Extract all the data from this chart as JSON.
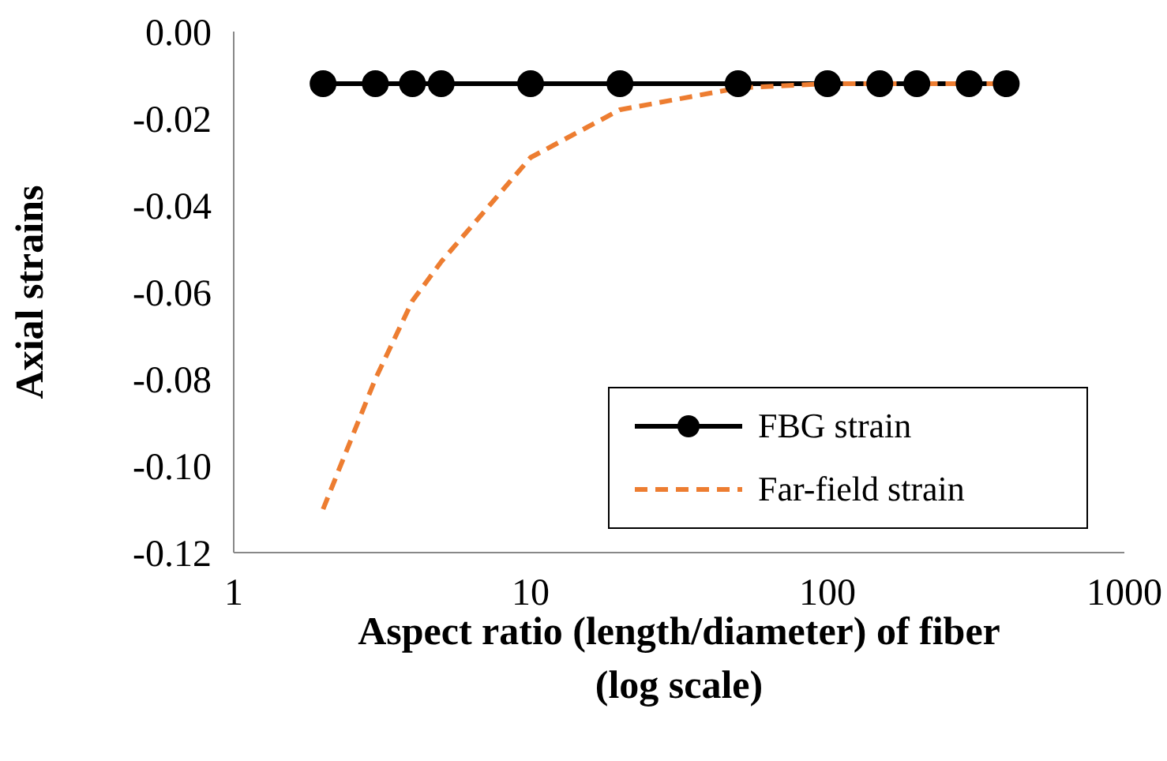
{
  "chart_data": {
    "type": "line",
    "xlabel": "Aspect ratio (length/diameter) of fiber\n(log scale)",
    "ylabel": "Axial strains",
    "x": [
      2,
      3,
      4,
      5,
      10,
      20,
      50,
      100,
      150,
      200,
      300,
      400
    ],
    "series": [
      {
        "name": "FBG strain",
        "color": "#000000",
        "marker": "circle",
        "line_style": "solid",
        "values": [
          -0.012,
          -0.012,
          -0.012,
          -0.012,
          -0.012,
          -0.012,
          -0.012,
          -0.012,
          -0.012,
          -0.012,
          -0.012,
          -0.012
        ]
      },
      {
        "name": "Far-field strain",
        "color": "#ed7d31",
        "marker": "none",
        "line_style": "dashed",
        "values": [
          -0.11,
          -0.08,
          -0.062,
          -0.053,
          -0.029,
          -0.018,
          -0.013,
          -0.012,
          -0.012,
          -0.012,
          -0.012,
          -0.012
        ]
      }
    ],
    "log": "x",
    "xlim": [
      1,
      1000
    ],
    "xticks": [
      1,
      10,
      100,
      1000
    ],
    "ylim": [
      -0.12,
      0
    ],
    "yticks": [
      {
        "value": -0.12,
        "label": "-0.12"
      },
      {
        "value": -0.1,
        "label": "-0.10"
      },
      {
        "value": -0.08,
        "label": "-0.08"
      },
      {
        "value": -0.06,
        "label": "-0.06"
      },
      {
        "value": -0.04,
        "label": "-0.04"
      },
      {
        "value": -0.02,
        "label": "-0.02"
      },
      {
        "value": 0,
        "label": "0.00"
      }
    ],
    "legend": "bottom right"
  }
}
